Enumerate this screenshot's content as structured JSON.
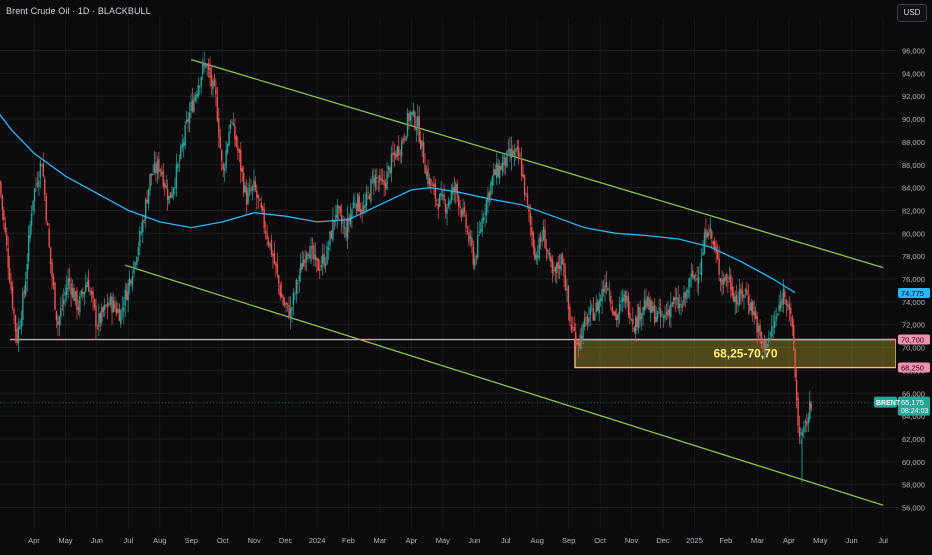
{
  "header": {
    "title": "Brent Crude Oil · 1D · BLACKBULL",
    "currency": "USD"
  },
  "chart_data": {
    "type": "candlestick",
    "title": "Brent Crude Oil · 1D · BLACKBULL",
    "symbol": "BRENT",
    "ylim": [
      55,
      97
    ],
    "y_ticks": [
      "56,000",
      "58,000",
      "60,000",
      "62,000",
      "64,000",
      "66,000",
      "68,000",
      "70,000",
      "72,000",
      "74,000",
      "76,000",
      "78,000",
      "80,000",
      "82,000",
      "84,000",
      "86,000",
      "88,000",
      "90,000",
      "92,000",
      "94,000",
      "96,000"
    ],
    "y_tick_values": [
      56,
      58,
      60,
      62,
      64,
      66,
      68,
      70,
      72,
      74,
      76,
      78,
      80,
      82,
      84,
      86,
      88,
      90,
      92,
      94,
      96
    ],
    "x_ticks": [
      {
        "label": "Apr",
        "t": 1
      },
      {
        "label": "May",
        "t": 2
      },
      {
        "label": "Jun",
        "t": 3
      },
      {
        "label": "Jul",
        "t": 4
      },
      {
        "label": "Aug",
        "t": 5
      },
      {
        "label": "Sep",
        "t": 6
      },
      {
        "label": "Oct",
        "t": 7
      },
      {
        "label": "Nov",
        "t": 8
      },
      {
        "label": "Dec",
        "t": 9
      },
      {
        "label": "2024",
        "t": 10
      },
      {
        "label": "Feb",
        "t": 11
      },
      {
        "label": "Mar",
        "t": 12
      },
      {
        "label": "Apr",
        "t": 13
      },
      {
        "label": "May",
        "t": 14
      },
      {
        "label": "Jun",
        "t": 15
      },
      {
        "label": "Jul",
        "t": 16
      },
      {
        "label": "Aug",
        "t": 17
      },
      {
        "label": "Sep",
        "t": 18
      },
      {
        "label": "Oct",
        "t": 19
      },
      {
        "label": "Nov",
        "t": 20
      },
      {
        "label": "Dec",
        "t": 21
      },
      {
        "label": "2025",
        "t": 22
      },
      {
        "label": "Feb",
        "t": 23
      },
      {
        "label": "Mar",
        "t": 24
      },
      {
        "label": "Apr",
        "t": 25
      },
      {
        "label": "May",
        "t": 26
      },
      {
        "label": "Jun",
        "t": 27
      },
      {
        "label": "Jul",
        "t": 28
      }
    ],
    "price_path": [
      [
        -0.1,
        84.5
      ],
      [
        0.2,
        77
      ],
      [
        0.45,
        70.7
      ],
      [
        0.7,
        75
      ],
      [
        0.95,
        83
      ],
      [
        1.25,
        86.5
      ],
      [
        1.5,
        78
      ],
      [
        1.75,
        72
      ],
      [
        2.1,
        76
      ],
      [
        2.4,
        73.5
      ],
      [
        2.7,
        76
      ],
      [
        3.0,
        72
      ],
      [
        3.4,
        74
      ],
      [
        3.75,
        73
      ],
      [
        4.05,
        76
      ],
      [
        4.4,
        80
      ],
      [
        4.7,
        85
      ],
      [
        5.0,
        86
      ],
      [
        5.3,
        83
      ],
      [
        5.6,
        86
      ],
      [
        5.9,
        90
      ],
      [
        6.2,
        93
      ],
      [
        6.45,
        95
      ],
      [
        6.65,
        93
      ],
      [
        6.8,
        91.5
      ],
      [
        7.0,
        85
      ],
      [
        7.25,
        90
      ],
      [
        7.5,
        87
      ],
      [
        7.75,
        83
      ],
      [
        8.0,
        84
      ],
      [
        8.3,
        81
      ],
      [
        8.6,
        78
      ],
      [
        8.9,
        74
      ],
      [
        9.15,
        73
      ],
      [
        9.4,
        76
      ],
      [
        9.7,
        79
      ],
      [
        10.0,
        77
      ],
      [
        10.3,
        78
      ],
      [
        10.6,
        82
      ],
      [
        10.9,
        80
      ],
      [
        11.2,
        83
      ],
      [
        11.5,
        82
      ],
      [
        11.8,
        85
      ],
      [
        12.1,
        84
      ],
      [
        12.4,
        86.5
      ],
      [
        12.7,
        88
      ],
      [
        12.95,
        90.5
      ],
      [
        13.2,
        89.5
      ],
      [
        13.5,
        85
      ],
      [
        13.8,
        83
      ],
      [
        14.1,
        82.5
      ],
      [
        14.4,
        84
      ],
      [
        14.7,
        81
      ],
      [
        15.0,
        77.5
      ],
      [
        15.3,
        82
      ],
      [
        15.6,
        85
      ],
      [
        15.9,
        86
      ],
      [
        16.2,
        87
      ],
      [
        16.45,
        86.5
      ],
      [
        16.7,
        82
      ],
      [
        16.95,
        78
      ],
      [
        17.2,
        80
      ],
      [
        17.5,
        76
      ],
      [
        17.8,
        78
      ],
      [
        18.05,
        72
      ],
      [
        18.3,
        70.5
      ],
      [
        18.6,
        72.5
      ],
      [
        18.9,
        73.5
      ],
      [
        19.2,
        76
      ],
      [
        19.5,
        72.5
      ],
      [
        19.8,
        74.5
      ],
      [
        20.1,
        72
      ],
      [
        20.4,
        74
      ],
      [
        20.7,
        73
      ],
      [
        21.0,
        72.5
      ],
      [
        21.3,
        74
      ],
      [
        21.6,
        73.5
      ],
      [
        21.9,
        76
      ],
      [
        22.2,
        77
      ],
      [
        22.4,
        81
      ],
      [
        22.6,
        79
      ],
      [
        22.85,
        76
      ],
      [
        23.1,
        76
      ],
      [
        23.35,
        74
      ],
      [
        23.6,
        75
      ],
      [
        23.9,
        73
      ],
      [
        24.15,
        70
      ],
      [
        24.4,
        71
      ],
      [
        24.65,
        73
      ],
      [
        24.85,
        75
      ],
      [
        25.0,
        74
      ],
      [
        25.15,
        70
      ],
      [
        25.3,
        63
      ],
      [
        25.45,
        62
      ],
      [
        25.6,
        64
      ],
      [
        25.75,
        65.2
      ]
    ],
    "ma_path": [
      [
        -0.4,
        91.5
      ],
      [
        0.3,
        89
      ],
      [
        1.0,
        87
      ],
      [
        2.0,
        85
      ],
      [
        3.0,
        83.5
      ],
      [
        4.0,
        82
      ],
      [
        5.0,
        81
      ],
      [
        6.0,
        80.5
      ],
      [
        7.0,
        81
      ],
      [
        8.0,
        81.8
      ],
      [
        9.0,
        81.5
      ],
      [
        10.0,
        81
      ],
      [
        11.0,
        81.2
      ],
      [
        12.0,
        82.5
      ],
      [
        13.0,
        83.8
      ],
      [
        13.6,
        84
      ],
      [
        14.5,
        83.6
      ],
      [
        15.5,
        83
      ],
      [
        16.5,
        82.5
      ],
      [
        17.5,
        81.5
      ],
      [
        18.5,
        80.5
      ],
      [
        19.5,
        80
      ],
      [
        20.5,
        79.8
      ],
      [
        21.5,
        79.5
      ],
      [
        22.5,
        78.8
      ],
      [
        23.5,
        77.5
      ],
      [
        24.5,
        76
      ],
      [
        25.2,
        74.8
      ]
    ],
    "ma_last": "74,775",
    "upper_trendline": [
      [
        6.0,
        95.2
      ],
      [
        28.0,
        77
      ]
    ],
    "lower_trendline": [
      [
        3.9,
        77.2
      ],
      [
        28.0,
        56.2
      ]
    ],
    "support_line": {
      "y": 70.7,
      "label": "70,700",
      "color": "#f48fb1"
    },
    "zone": {
      "y0": 68.25,
      "y1": 70.7,
      "x0": 18.2,
      "x1": 28.0,
      "label": "68,25-70,70"
    },
    "zone_lower_label": "68,250",
    "last_price": {
      "value": "65,175",
      "symbol": "BRENT",
      "countdown": "08:24:03",
      "y": 65.175
    },
    "colors": {
      "up": "#26a69a",
      "down": "#ef5350",
      "trend": "#8bc34a",
      "ma": "#29b6f6",
      "zone_fill": "#ffeb3b",
      "zone_border": "#f5b971",
      "support": "#f48fb1"
    }
  }
}
